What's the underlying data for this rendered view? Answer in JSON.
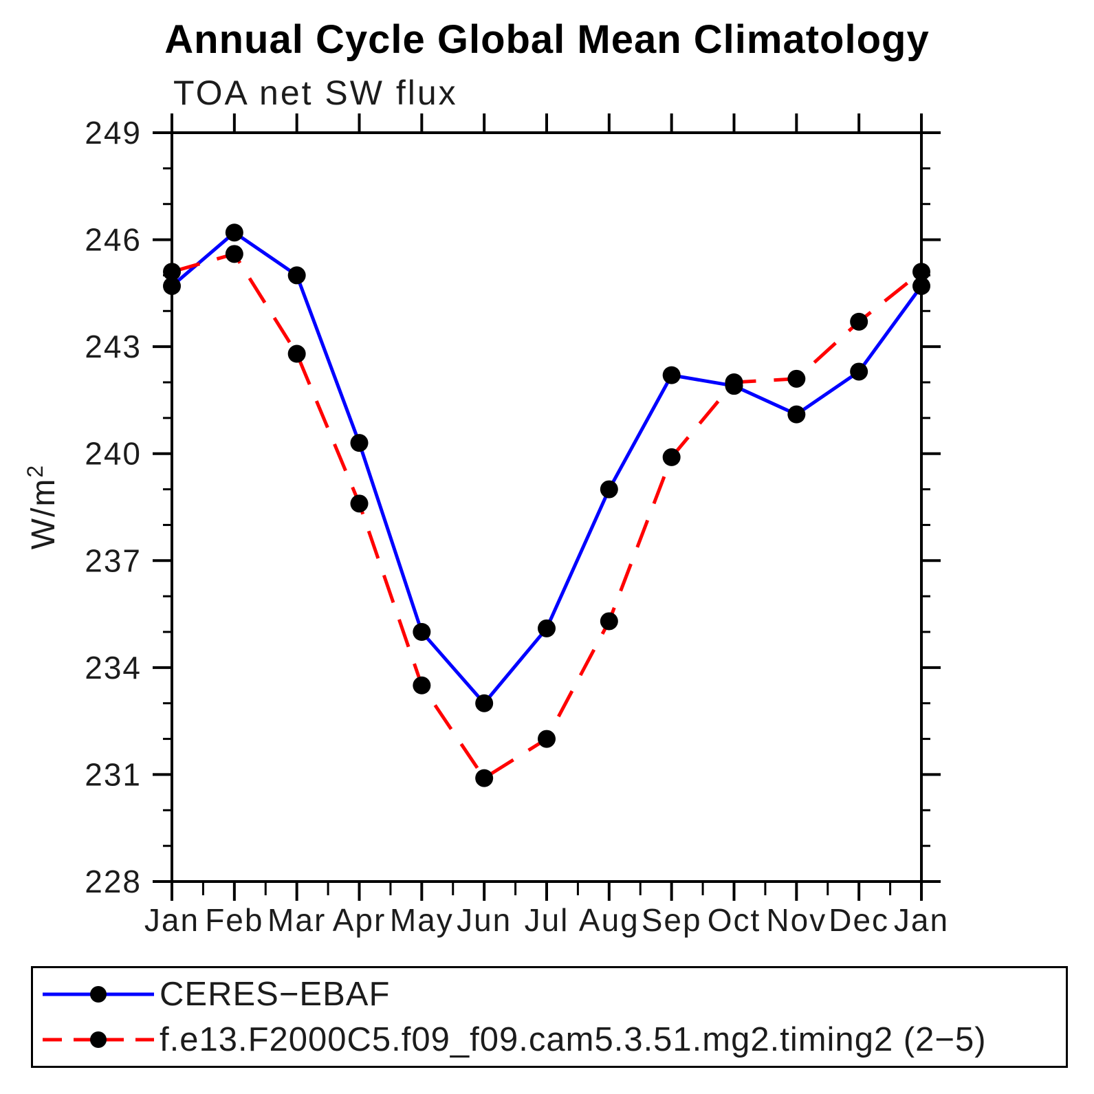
{
  "page": {
    "background": "#ffffff"
  },
  "chart_data": {
    "type": "line",
    "title": "Annual Cycle Global Mean Climatology",
    "subtitle": "TOA net SW flux",
    "ylabel": {
      "base": "W/m",
      "exponent": "2"
    },
    "x_categories": [
      "Jan",
      "Feb",
      "Mar",
      "Apr",
      "May",
      "Jun",
      "Jul",
      "Aug",
      "Sep",
      "Oct",
      "Nov",
      "Dec",
      "Jan"
    ],
    "ylim": [
      228,
      249
    ],
    "ytick_major": [
      228,
      231,
      234,
      237,
      240,
      243,
      246,
      249
    ],
    "ytick_minor_step": 1,
    "xaxis_minor_midpoints": true,
    "grid": false,
    "legend_position": "bottom-box",
    "axis_color": "#000000",
    "series": [
      {
        "name": "CERES−EBAF",
        "color": "#0000ff",
        "line_style": "solid",
        "marker": "filled-circle",
        "marker_color": "#000000",
        "values": [
          244.7,
          246.2,
          245.0,
          240.3,
          235.0,
          233.0,
          235.1,
          239.0,
          242.2,
          241.9,
          241.1,
          242.3,
          244.7
        ]
      },
      {
        "name": "f.e13.F2000C5.f09_f09.cam5.3.51.mg2.timing2 (2−5)",
        "color": "#ff0000",
        "line_style": "dashed",
        "marker": "filled-circle",
        "marker_color": "#000000",
        "values": [
          245.1,
          245.6,
          242.8,
          238.6,
          233.5,
          230.9,
          232.0,
          235.3,
          239.9,
          242.0,
          242.1,
          243.7,
          245.1
        ]
      }
    ]
  }
}
